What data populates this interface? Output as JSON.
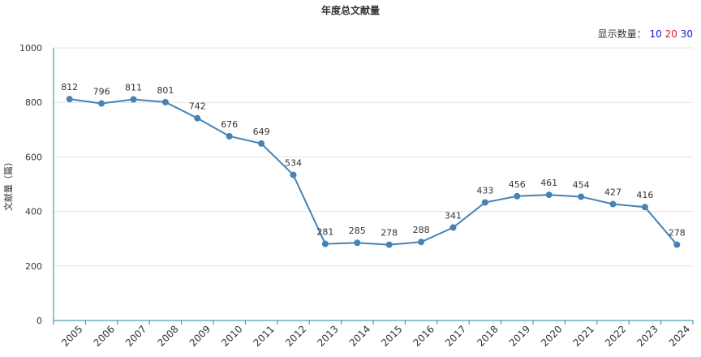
{
  "title": "年度总文献量",
  "display_count": {
    "label": "显示数量：",
    "options": [
      {
        "value": "10",
        "color": "#1a1adb"
      },
      {
        "value": "20",
        "color": "#e0182d"
      },
      {
        "value": "30",
        "color": "#1a1adb"
      }
    ]
  },
  "chart_data": {
    "type": "line",
    "title": "年度总文献量",
    "xlabel": "",
    "ylabel": "文献量（篇）",
    "ylim": [
      0,
      1000
    ],
    "yticks": [
      0,
      200,
      400,
      600,
      800,
      1000
    ],
    "grid": "horizontal",
    "categories": [
      "2005",
      "2006",
      "2007",
      "2008",
      "2009",
      "2010",
      "2011",
      "2012",
      "2013",
      "2014",
      "2015",
      "2016",
      "2017",
      "2018",
      "2019",
      "2020",
      "2021",
      "2022",
      "2023",
      "2024"
    ],
    "values": [
      812,
      796,
      811,
      801,
      742,
      676,
      649,
      534,
      281,
      285,
      278,
      288,
      341,
      433,
      456,
      461,
      454,
      427,
      416,
      278
    ],
    "line_color": "#4682b4",
    "axis_color": "#1f8a99"
  }
}
